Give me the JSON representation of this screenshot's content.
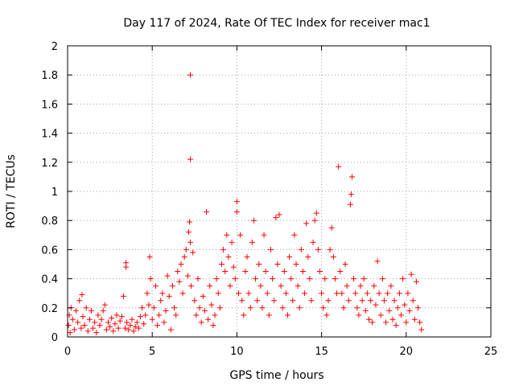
{
  "chart_data": {
    "type": "scatter",
    "title": "Day 117 of 2024, Rate Of TEC Index for receiver mac1",
    "xlabel": "GPS time / hours",
    "ylabel": "ROTI / TECUs",
    "xlim": [
      0,
      25
    ],
    "ylim": [
      0,
      2
    ],
    "xticks": [
      0,
      5,
      10,
      15,
      20,
      25
    ],
    "yticks": [
      0,
      0.2,
      0.4,
      0.6,
      0.8,
      1,
      1.2,
      1.4,
      1.6,
      1.8,
      2
    ],
    "xtick_labels": [
      "0",
      "5",
      "10",
      "15",
      "20",
      "25"
    ],
    "ytick_labels": [
      "0",
      "0.2",
      "0.4",
      "0.6",
      "0.8",
      "1",
      "1.2",
      "1.4",
      "1.6",
      "1.8",
      "2"
    ],
    "grid": true,
    "marker": "+",
    "marker_color": "#ff0000",
    "series": [
      {
        "points": [
          [
            0.05,
            0.08
          ],
          [
            0.1,
            0.15
          ],
          [
            0.15,
            0.03
          ],
          [
            0.2,
            0.2
          ],
          [
            0.3,
            0.12
          ],
          [
            0.4,
            0.05
          ],
          [
            0.5,
            0.18
          ],
          [
            0.6,
            0.1
          ],
          [
            0.7,
            0.25
          ],
          [
            0.8,
            0.06
          ],
          [
            0.85,
            0.29
          ],
          [
            0.9,
            0.14
          ],
          [
            1.0,
            0.08
          ],
          [
            1.1,
            0.2
          ],
          [
            1.2,
            0.04
          ],
          [
            1.3,
            0.12
          ],
          [
            1.4,
            0.18
          ],
          [
            1.5,
            0.06
          ],
          [
            1.6,
            0.1
          ],
          [
            1.7,
            0.03
          ],
          [
            1.8,
            0.15
          ],
          [
            1.9,
            0.08
          ],
          [
            2.0,
            0.12
          ],
          [
            2.1,
            0.18
          ],
          [
            2.2,
            0.22
          ],
          [
            2.3,
            0.05
          ],
          [
            2.4,
            0.1
          ],
          [
            2.5,
            0.07
          ],
          [
            2.6,
            0.13
          ],
          [
            2.7,
            0.04
          ],
          [
            2.8,
            0.09
          ],
          [
            2.9,
            0.15
          ],
          [
            3.0,
            0.06
          ],
          [
            3.1,
            0.11
          ],
          [
            3.2,
            0.14
          ],
          [
            3.3,
            0.28
          ],
          [
            3.4,
            0.06
          ],
          [
            3.45,
            0.48
          ],
          [
            3.45,
            0.51
          ],
          [
            3.5,
            0.1
          ],
          [
            3.6,
            0.05
          ],
          [
            3.7,
            0.08
          ],
          [
            3.8,
            0.12
          ],
          [
            3.9,
            0.04
          ],
          [
            4.0,
            0.07
          ],
          [
            4.1,
            0.1
          ],
          [
            4.2,
            0.06
          ],
          [
            4.3,
            0.14
          ],
          [
            4.4,
            0.2
          ],
          [
            4.5,
            0.09
          ],
          [
            4.6,
            0.15
          ],
          [
            4.7,
            0.3
          ],
          [
            4.8,
            0.22
          ],
          [
            4.85,
            0.55
          ],
          [
            4.9,
            0.4
          ],
          [
            5.0,
            0.12
          ],
          [
            5.1,
            0.2
          ],
          [
            5.2,
            0.35
          ],
          [
            5.3,
            0.08
          ],
          [
            5.4,
            0.15
          ],
          [
            5.5,
            0.25
          ],
          [
            5.6,
            0.3
          ],
          [
            5.7,
            0.1
          ],
          [
            5.8,
            0.18
          ],
          [
            5.9,
            0.42
          ],
          [
            6.0,
            0.28
          ],
          [
            6.1,
            0.05
          ],
          [
            6.2,
            0.35
          ],
          [
            6.3,
            0.2
          ],
          [
            6.4,
            0.15
          ],
          [
            6.5,
            0.45
          ],
          [
            6.6,
            0.38
          ],
          [
            6.7,
            0.5
          ],
          [
            6.8,
            0.3
          ],
          [
            6.9,
            0.55
          ],
          [
            7.0,
            0.6
          ],
          [
            7.1,
            0.42
          ],
          [
            7.15,
            0.72
          ],
          [
            7.2,
            0.79
          ],
          [
            7.25,
            0.65
          ],
          [
            7.25,
            1.22
          ],
          [
            7.25,
            1.8
          ],
          [
            7.3,
            0.35
          ],
          [
            7.4,
            0.58
          ],
          [
            7.5,
            0.25
          ],
          [
            7.6,
            0.15
          ],
          [
            7.7,
            0.4
          ],
          [
            7.8,
            0.2
          ],
          [
            7.9,
            0.1
          ],
          [
            8.0,
            0.28
          ],
          [
            8.1,
            0.18
          ],
          [
            8.2,
            0.86
          ],
          [
            8.3,
            0.12
          ],
          [
            8.4,
            0.35
          ],
          [
            8.5,
            0.22
          ],
          [
            8.6,
            0.08
          ],
          [
            8.7,
            0.15
          ],
          [
            8.8,
            0.4
          ],
          [
            8.9,
            0.3
          ],
          [
            9.0,
            0.2
          ],
          [
            9.1,
            0.5
          ],
          [
            9.2,
            0.6
          ],
          [
            9.3,
            0.45
          ],
          [
            9.4,
            0.7
          ],
          [
            9.5,
            0.55
          ],
          [
            9.6,
            0.35
          ],
          [
            9.7,
            0.65
          ],
          [
            9.8,
            0.48
          ],
          [
            9.9,
            0.4
          ],
          [
            10.0,
            0.93
          ],
          [
            10.0,
            0.86
          ],
          [
            10.1,
            0.3
          ],
          [
            10.2,
            0.7
          ],
          [
            10.3,
            0.25
          ],
          [
            10.4,
            0.15
          ],
          [
            10.5,
            0.45
          ],
          [
            10.6,
            0.55
          ],
          [
            10.7,
            0.3
          ],
          [
            10.8,
            0.2
          ],
          [
            10.9,
            0.65
          ],
          [
            11.0,
            0.8
          ],
          [
            11.1,
            0.4
          ],
          [
            11.2,
            0.25
          ],
          [
            11.3,
            0.5
          ],
          [
            11.4,
            0.35
          ],
          [
            11.5,
            0.2
          ],
          [
            11.6,
            0.7
          ],
          [
            11.7,
            0.45
          ],
          [
            11.8,
            0.3
          ],
          [
            11.9,
            0.15
          ],
          [
            12.0,
            0.6
          ],
          [
            12.1,
            0.4
          ],
          [
            12.2,
            0.25
          ],
          [
            12.3,
            0.82
          ],
          [
            12.4,
            0.5
          ],
          [
            12.5,
            0.84
          ],
          [
            12.6,
            0.35
          ],
          [
            12.7,
            0.2
          ],
          [
            12.8,
            0.45
          ],
          [
            12.9,
            0.3
          ],
          [
            13.0,
            0.15
          ],
          [
            13.1,
            0.55
          ],
          [
            13.2,
            0.4
          ],
          [
            13.3,
            0.25
          ],
          [
            13.4,
            0.7
          ],
          [
            13.5,
            0.5
          ],
          [
            13.6,
            0.35
          ],
          [
            13.7,
            0.2
          ],
          [
            13.8,
            0.6
          ],
          [
            13.9,
            0.45
          ],
          [
            14.0,
            0.3
          ],
          [
            14.1,
            0.78
          ],
          [
            14.2,
            0.55
          ],
          [
            14.3,
            0.4
          ],
          [
            14.4,
            0.25
          ],
          [
            14.5,
            0.65
          ],
          [
            14.6,
            0.8
          ],
          [
            14.7,
            0.85
          ],
          [
            14.8,
            0.6
          ],
          [
            14.9,
            0.45
          ],
          [
            15.0,
            0.3
          ],
          [
            15.1,
            0.2
          ],
          [
            15.2,
            0.4
          ],
          [
            15.3,
            0.15
          ],
          [
            15.4,
            0.25
          ],
          [
            15.5,
            0.6
          ],
          [
            15.6,
            0.75
          ],
          [
            15.7,
            0.55
          ],
          [
            15.8,
            0.4
          ],
          [
            15.9,
            0.3
          ],
          [
            16.0,
            1.17
          ],
          [
            16.1,
            0.45
          ],
          [
            16.2,
            0.3
          ],
          [
            16.3,
            0.2
          ],
          [
            16.4,
            0.5
          ],
          [
            16.5,
            0.35
          ],
          [
            16.6,
            0.25
          ],
          [
            16.7,
            0.91
          ],
          [
            16.75,
            0.98
          ],
          [
            16.8,
            1.1
          ],
          [
            16.9,
            0.4
          ],
          [
            17.0,
            0.3
          ],
          [
            17.1,
            0.2
          ],
          [
            17.2,
            0.15
          ],
          [
            17.3,
            0.35
          ],
          [
            17.4,
            0.25
          ],
          [
            17.5,
            0.4
          ],
          [
            17.6,
            0.18
          ],
          [
            17.7,
            0.3
          ],
          [
            17.8,
            0.12
          ],
          [
            17.9,
            0.25
          ],
          [
            18.0,
            0.1
          ],
          [
            18.1,
            0.35
          ],
          [
            18.2,
            0.22
          ],
          [
            18.3,
            0.52
          ],
          [
            18.4,
            0.3
          ],
          [
            18.5,
            0.15
          ],
          [
            18.6,
            0.4
          ],
          [
            18.7,
            0.25
          ],
          [
            18.8,
            0.1
          ],
          [
            18.9,
            0.3
          ],
          [
            19.0,
            0.18
          ],
          [
            19.1,
            0.35
          ],
          [
            19.2,
            0.12
          ],
          [
            19.3,
            0.25
          ],
          [
            19.4,
            0.08
          ],
          [
            19.5,
            0.2
          ],
          [
            19.6,
            0.3
          ],
          [
            19.7,
            0.15
          ],
          [
            19.8,
            0.4
          ],
          [
            19.9,
            0.22
          ],
          [
            20.0,
            0.1
          ],
          [
            20.1,
            0.3
          ],
          [
            20.2,
            0.18
          ],
          [
            20.3,
            0.43
          ],
          [
            20.4,
            0.25
          ],
          [
            20.5,
            0.12
          ],
          [
            20.6,
            0.38
          ],
          [
            20.7,
            0.2
          ],
          [
            20.8,
            0.1
          ],
          [
            20.9,
            0.05
          ]
        ]
      }
    ]
  }
}
